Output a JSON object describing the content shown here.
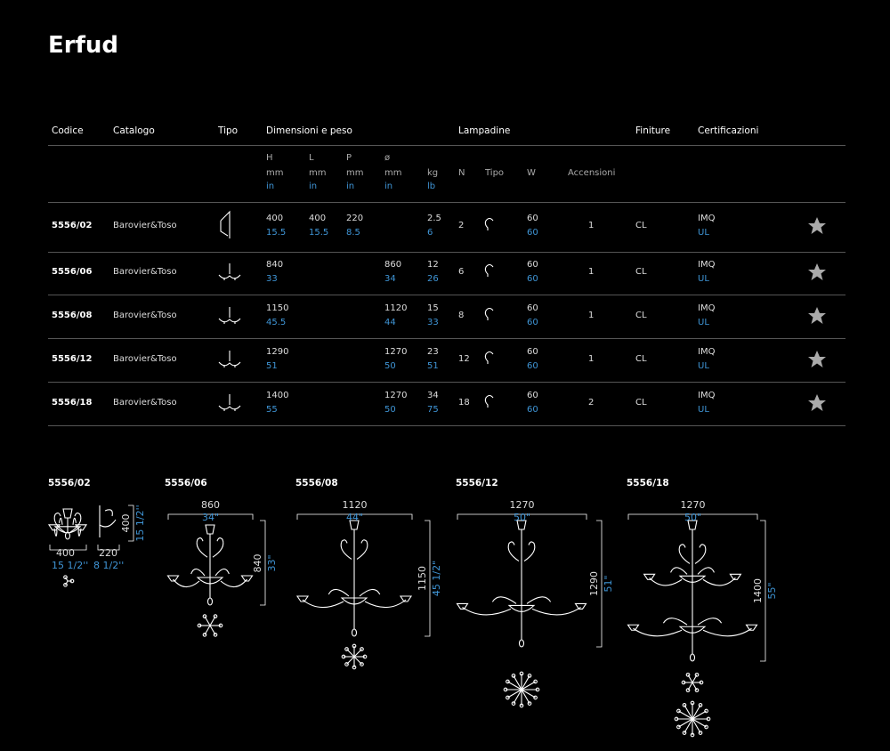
{
  "title": "Erfud",
  "table": {
    "headers": [
      "Codice",
      "Catalogo",
      "Tipo",
      "Dimensioni e peso",
      "Lampadine",
      "Finiture",
      "Certificazioni"
    ],
    "dimension_columns": [
      {
        "symbol": "H",
        "units": [
          "mm",
          "in"
        ]
      },
      {
        "symbol": "L",
        "units": [
          "mm",
          "in"
        ]
      },
      {
        "symbol": "P",
        "units": [
          "mm",
          "in"
        ]
      },
      {
        "symbol": "ø",
        "units": [
          "mm",
          "in"
        ]
      },
      {
        "units": [
          "kg",
          "lb"
        ]
      }
    ],
    "lamp_columns": [
      "N",
      "Tipo",
      "W",
      "Accensioni"
    ],
    "rows": [
      {
        "code": "5556/02",
        "catalog": "Barovier&Toso",
        "h": [
          "400",
          "15.5"
        ],
        "l": [
          "400",
          "15.5"
        ],
        "p": [
          "220",
          "8.5"
        ],
        "kg": [
          "2.5",
          "6"
        ],
        "n": "2",
        "w": [
          "60",
          "60"
        ],
        "switch": "1",
        "finish": "CL",
        "cert": [
          "IMQ",
          "UL"
        ]
      },
      {
        "code": "5556/06",
        "catalog": "Barovier&Toso",
        "h": [
          "840",
          "33"
        ],
        "d": [
          "860",
          "34"
        ],
        "kg": [
          "12",
          "26"
        ],
        "n": "6",
        "w": [
          "60",
          "60"
        ],
        "switch": "1",
        "finish": "CL",
        "cert": [
          "IMQ",
          "UL"
        ]
      },
      {
        "code": "5556/08",
        "catalog": "Barovier&Toso",
        "h": [
          "1150",
          "45.5"
        ],
        "d": [
          "1120",
          "44"
        ],
        "kg": [
          "15",
          "33"
        ],
        "n": "8",
        "w": [
          "60",
          "60"
        ],
        "switch": "1",
        "finish": "CL",
        "cert": [
          "IMQ",
          "UL"
        ]
      },
      {
        "code": "5556/12",
        "catalog": "Barovier&Toso",
        "h": [
          "1290",
          "51"
        ],
        "d": [
          "1270",
          "50"
        ],
        "kg": [
          "23",
          "51"
        ],
        "n": "12",
        "w": [
          "60",
          "60"
        ],
        "switch": "1",
        "finish": "CL",
        "cert": [
          "IMQ",
          "UL"
        ]
      },
      {
        "code": "5556/18",
        "catalog": "Barovier&Toso",
        "h": [
          "1400",
          "55"
        ],
        "d": [
          "1270",
          "50"
        ],
        "kg": [
          "34",
          "75"
        ],
        "n": "18",
        "w": [
          "60",
          "60"
        ],
        "switch": "2",
        "finish": "CL",
        "cert": [
          "IMQ",
          "UL"
        ]
      }
    ]
  },
  "drawings": [
    {
      "code": "5556/02",
      "width_mm": "400",
      "width_in": "15 1/2''",
      "depth_mm": "220",
      "depth_in": "8 1/2''",
      "height_mm": "400",
      "height_in": "15 1/2''"
    },
    {
      "code": "5556/06",
      "width_mm": "860",
      "width_in": "34\"",
      "height_mm": "840",
      "height_in": "33\""
    },
    {
      "code": "5556/08",
      "width_mm": "1120",
      "width_in": "44\"",
      "height_mm": "1150",
      "height_in": "45 1/2\""
    },
    {
      "code": "5556/12",
      "width_mm": "1270",
      "width_in": "50\"",
      "height_mm": "1290",
      "height_in": "51\""
    },
    {
      "code": "5556/18",
      "width_mm": "1270",
      "width_in": "50\"",
      "height_mm": "1400",
      "height_in": "55\""
    }
  ]
}
